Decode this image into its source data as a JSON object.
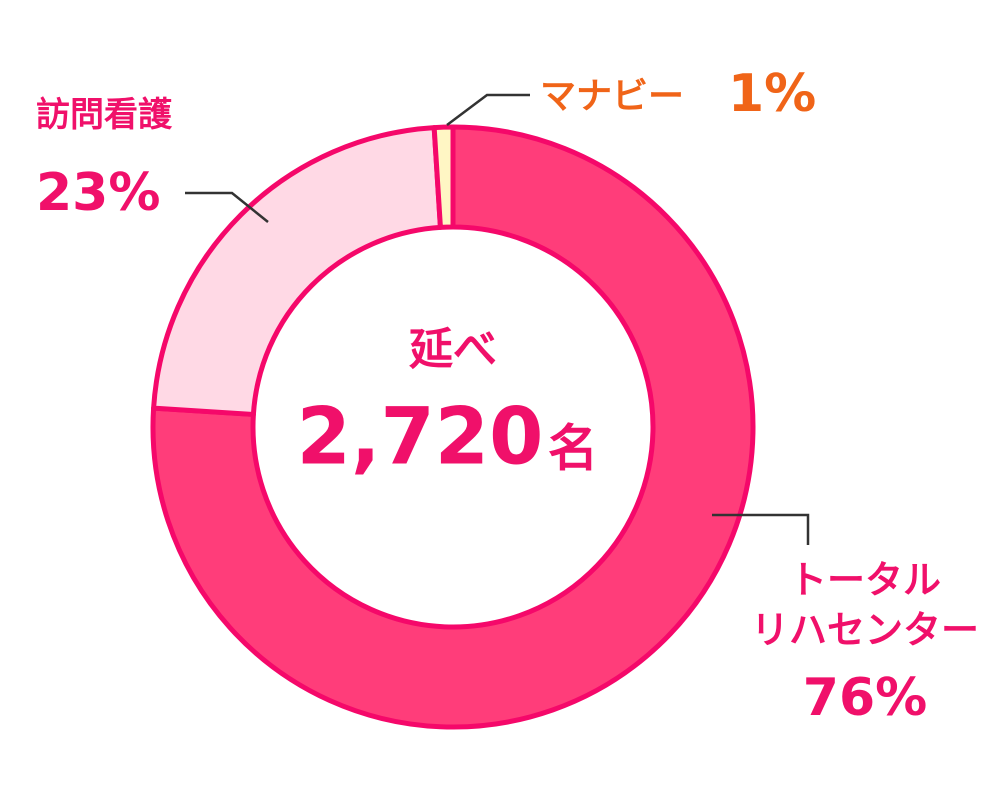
{
  "chart_data": {
    "type": "pie",
    "donut": true,
    "categories": [
      "トータル\nリハセンター",
      "訪問看護",
      "マナビー"
    ],
    "values": [
      76,
      23,
      1
    ],
    "value_labels": [
      "76%",
      "23%",
      "1%"
    ],
    "colors": [
      "#ff3d7a",
      "#ffd9e5",
      "#fff6c4"
    ],
    "label_colors": [
      "#f0106a",
      "#f0106a",
      "#f06418"
    ],
    "center_title": "延べ",
    "center_value": "2,720",
    "center_unit": "名"
  }
}
